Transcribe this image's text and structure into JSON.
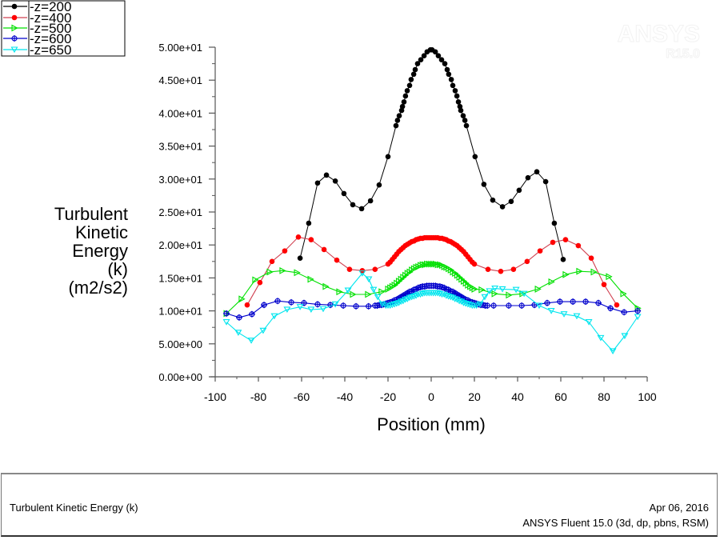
{
  "chart_data": {
    "type": "line",
    "title": "",
    "xlabel": "Position (mm)",
    "ylabel_lines": [
      "Turbulent",
      "Kinetic",
      "Energy",
      "(k)",
      "(m2/s2)"
    ],
    "ylabel": "Turbulent Kinetic Energy (k) (m2/s2)",
    "xlim": [
      -100,
      100
    ],
    "ylim": [
      0,
      50
    ],
    "x_ticks": [
      -100,
      -80,
      -60,
      -40,
      -20,
      0,
      20,
      40,
      60,
      80,
      100
    ],
    "x_tick_labels": [
      "-100",
      "-80",
      "-60",
      "-40",
      "-20",
      "0",
      "20",
      "40",
      "60",
      "80",
      "100"
    ],
    "y_ticks": [
      0,
      5,
      10,
      15,
      20,
      25,
      30,
      35,
      40,
      45,
      50
    ],
    "y_tick_labels": [
      "0.00e+00",
      "5.00e+00",
      "1.00e+01",
      "1.50e+01",
      "2.00e+01",
      "2.50e+01",
      "3.00e+01",
      "3.50e+01",
      "4.00e+01",
      "4.50e+01",
      "5.00e+01"
    ],
    "grid": false,
    "legend_position": "top-left",
    "series": [
      {
        "name": "-z=200",
        "color": "#000000",
        "marker": "circle",
        "x": [
          -60.7,
          -56.7,
          -52.6,
          -48.5,
          -44.4,
          -40.4,
          -36.3,
          -32.2,
          -28.1,
          -24.1,
          -20.0,
          -16.3,
          -15.6,
          -14.8,
          -13.7,
          -13.3,
          -12.6,
          -11.9,
          -11.1,
          -10.0,
          -9.3,
          -8.1,
          -7.4,
          -6.3,
          -4.8,
          -3.3,
          -1.9,
          -0.4,
          0.4,
          1.9,
          3.3,
          4.8,
          6.3,
          7.4,
          8.1,
          9.3,
          10.0,
          11.1,
          11.9,
          12.6,
          13.3,
          13.7,
          14.8,
          15.6,
          16.3,
          20.3,
          24.4,
          28.5,
          33.0,
          37.0,
          40.7,
          44.8,
          48.9,
          53.0,
          57.0,
          61.1
        ],
        "y": [
          18.0,
          23.3,
          29.4,
          30.6,
          29.7,
          27.8,
          26.1,
          25.5,
          26.7,
          29.1,
          33.4,
          38.1,
          38.9,
          39.6,
          40.4,
          41.0,
          41.7,
          42.6,
          43.4,
          44.2,
          45.1,
          45.9,
          46.6,
          47.5,
          48.1,
          48.7,
          49.3,
          49.6,
          49.6,
          49.3,
          48.7,
          48.1,
          47.5,
          46.6,
          45.9,
          45.1,
          44.2,
          43.4,
          42.6,
          41.7,
          41.0,
          40.4,
          39.6,
          38.9,
          38.1,
          33.4,
          29.2,
          26.8,
          25.8,
          26.6,
          28.3,
          30.2,
          31.1,
          29.6,
          23.3,
          17.8
        ]
      },
      {
        "name": "-z=400",
        "color": "#ff0000",
        "marker": "circle",
        "x": [
          -85.2,
          -79.3,
          -73.7,
          -67.8,
          -61.5,
          -55.6,
          -49.6,
          -43.7,
          -37.8,
          -31.9,
          -26.0,
          -20.0,
          -19.0,
          -18.0,
          -17.0,
          -16.0,
          -15.0,
          -14.0,
          -13.0,
          -12.0,
          -11.0,
          -10.0,
          -9.0,
          -8.0,
          -7.0,
          -6.0,
          -5.0,
          -4.0,
          -3.0,
          -2.0,
          -1.0,
          0.0,
          1.0,
          2.0,
          3.0,
          4.0,
          5.0,
          6.0,
          7.0,
          8.0,
          9.0,
          10.0,
          11.0,
          12.0,
          13.0,
          14.0,
          15.0,
          16.0,
          17.0,
          18.0,
          19.0,
          20.0,
          26.3,
          32.2,
          38.1,
          44.4,
          50.4,
          56.3,
          62.2,
          68.1,
          74.1,
          80.0,
          85.9
        ],
        "y": [
          10.9,
          14.3,
          17.5,
          19.1,
          21.2,
          20.8,
          19.3,
          17.7,
          16.3,
          16.1,
          16.3,
          17.1,
          17.4,
          17.8,
          18.2,
          18.6,
          19.0,
          19.3,
          19.6,
          19.9,
          20.1,
          20.3,
          20.5,
          20.6,
          20.8,
          20.9,
          21.0,
          21.0,
          21.1,
          21.1,
          21.1,
          21.1,
          21.1,
          21.1,
          21.1,
          21.0,
          21.0,
          20.9,
          20.8,
          20.6,
          20.5,
          20.3,
          20.1,
          19.9,
          19.6,
          19.3,
          19.0,
          18.6,
          18.2,
          17.8,
          17.4,
          17.1,
          16.3,
          16.0,
          16.3,
          17.5,
          19.1,
          20.4,
          20.8,
          19.9,
          18.0,
          14.0,
          10.9
        ]
      },
      {
        "name": "-z=500",
        "color": "#00e000",
        "marker": "triangle-right",
        "x": [
          -94.8,
          -87.8,
          -81.5,
          -74.8,
          -68.9,
          -62.2,
          -55.9,
          -48.9,
          -42.6,
          -36.3,
          -29.3,
          -23.0,
          -20.0,
          -19.0,
          -18.0,
          -17.0,
          -16.0,
          -15.0,
          -14.0,
          -13.0,
          -12.0,
          -11.0,
          -10.0,
          -9.0,
          -8.0,
          -7.0,
          -6.0,
          -5.0,
          -4.0,
          -3.0,
          -2.0,
          -1.0,
          0.0,
          1.0,
          2.0,
          3.0,
          4.0,
          5.0,
          6.0,
          7.0,
          8.0,
          9.0,
          10.0,
          11.0,
          12.0,
          13.0,
          14.0,
          15.0,
          16.0,
          17.0,
          18.0,
          19.0,
          20.0,
          23.3,
          29.3,
          35.9,
          42.2,
          49.3,
          55.6,
          62.2,
          68.5,
          75.2,
          82.2,
          88.9,
          95.6
        ],
        "y": [
          9.6,
          11.8,
          14.7,
          15.9,
          16.1,
          15.8,
          14.8,
          13.7,
          12.9,
          12.5,
          12.5,
          12.9,
          13.3,
          13.5,
          13.7,
          13.9,
          14.2,
          14.5,
          14.8,
          15.1,
          15.4,
          15.7,
          15.9,
          16.2,
          16.4,
          16.6,
          16.7,
          16.9,
          17.0,
          17.0,
          17.1,
          17.1,
          17.1,
          17.1,
          17.1,
          17.0,
          17.0,
          16.9,
          16.7,
          16.6,
          16.4,
          16.2,
          15.9,
          15.7,
          15.4,
          15.1,
          14.8,
          14.5,
          14.2,
          13.9,
          13.7,
          13.5,
          13.3,
          13.2,
          12.6,
          12.4,
          12.6,
          13.3,
          14.4,
          15.5,
          16.0,
          15.9,
          15.2,
          12.6,
          10.4
        ]
      },
      {
        "name": "-z=600",
        "color": "#0000cc",
        "marker": "diamond-cross",
        "x": [
          -94.8,
          -88.9,
          -83.0,
          -77.4,
          -71.1,
          -64.8,
          -58.9,
          -52.6,
          -46.7,
          -40.7,
          -34.8,
          -29.0,
          -26.0,
          -25.0,
          -24.0,
          -23.0,
          -22.0,
          -21.0,
          -20.0,
          -19.0,
          -18.0,
          -17.0,
          -16.0,
          -15.0,
          -14.0,
          -13.0,
          -12.0,
          -11.0,
          -10.0,
          -9.0,
          -8.0,
          -7.0,
          -6.0,
          -5.0,
          -4.0,
          -3.0,
          -2.0,
          -1.0,
          0.0,
          1.0,
          2.0,
          3.0,
          4.0,
          5.0,
          6.0,
          7.0,
          8.0,
          9.0,
          10.0,
          11.0,
          12.0,
          13.0,
          14.0,
          15.0,
          16.0,
          17.0,
          18.0,
          19.0,
          20.0,
          21.0,
          22.0,
          23.0,
          24.0,
          25.0,
          26.0,
          28.9,
          35.9,
          41.9,
          47.8,
          53.7,
          59.6,
          65.6,
          71.5,
          77.4,
          83.0,
          89.3,
          95.6
        ],
        "y": [
          9.6,
          9.0,
          9.5,
          10.9,
          11.5,
          11.3,
          11.2,
          11.0,
          10.9,
          10.8,
          10.7,
          10.7,
          10.8,
          10.8,
          10.9,
          10.9,
          11.0,
          11.1,
          11.2,
          11.3,
          11.4,
          11.6,
          11.7,
          11.9,
          12.1,
          12.3,
          12.5,
          12.7,
          12.9,
          13.0,
          13.2,
          13.3,
          13.5,
          13.6,
          13.7,
          13.7,
          13.8,
          13.8,
          13.8,
          13.8,
          13.8,
          13.7,
          13.7,
          13.6,
          13.5,
          13.3,
          13.2,
          13.0,
          12.9,
          12.7,
          12.5,
          12.3,
          12.1,
          11.9,
          11.7,
          11.6,
          11.4,
          11.3,
          11.2,
          11.1,
          11.0,
          10.9,
          10.9,
          10.8,
          10.8,
          10.8,
          10.8,
          10.8,
          10.9,
          11.2,
          11.4,
          11.4,
          11.4,
          11.2,
          10.4,
          9.8,
          10.0
        ]
      },
      {
        "name": "-z=650",
        "color": "#00e5ee",
        "marker": "triangle-down",
        "x": [
          -94.8,
          -89.3,
          -83.3,
          -77.8,
          -72.6,
          -66.7,
          -60.7,
          -55.6,
          -50.0,
          -44.4,
          -38.5,
          -31.9,
          -28.9,
          -26.7,
          -24.8,
          -22.6,
          -21.0,
          -20.0,
          -19.0,
          -18.0,
          -17.0,
          -16.0,
          -15.0,
          -14.0,
          -13.0,
          -12.0,
          -11.0,
          -10.0,
          -9.0,
          -8.0,
          -7.0,
          -6.0,
          -5.0,
          -4.0,
          -3.0,
          -2.0,
          -1.0,
          0.0,
          1.0,
          2.0,
          3.0,
          4.0,
          5.0,
          6.0,
          7.0,
          8.0,
          9.0,
          10.0,
          11.0,
          12.0,
          13.0,
          14.0,
          15.0,
          16.0,
          17.0,
          18.0,
          19.0,
          20.0,
          21.0,
          22.6,
          24.8,
          27.0,
          29.5,
          33.0,
          39.3,
          43.0,
          50.0,
          55.6,
          61.5,
          67.4,
          73.0,
          78.5,
          84.1,
          89.6,
          95.6
        ],
        "y": [
          8.3,
          6.7,
          5.5,
          7.0,
          9.2,
          10.2,
          10.6,
          10.2,
          10.3,
          11.0,
          13.1,
          15.7,
          14.8,
          13.2,
          12.1,
          11.0,
          10.8,
          10.8,
          10.8,
          10.9,
          11.0,
          11.1,
          11.2,
          11.4,
          11.5,
          11.7,
          11.8,
          12.0,
          12.1,
          12.2,
          12.3,
          12.5,
          12.5,
          12.6,
          12.7,
          12.7,
          12.7,
          12.7,
          12.7,
          12.7,
          12.7,
          12.6,
          12.5,
          12.5,
          12.3,
          12.2,
          12.1,
          12.0,
          11.8,
          11.7,
          11.5,
          11.4,
          11.2,
          11.1,
          11.0,
          10.9,
          10.8,
          10.8,
          10.8,
          11.0,
          12.1,
          13.0,
          13.4,
          13.3,
          13.2,
          12.6,
          10.8,
          10.0,
          9.5,
          9.2,
          8.3,
          5.9,
          3.9,
          6.2,
          9.1
        ]
      }
    ]
  },
  "watermark": {
    "brand": "ANSYS",
    "version": "R15.0"
  },
  "footer": {
    "title": "Turbulent Kinetic Energy (k)",
    "date": "Apr 06, 2016",
    "software": "ANSYS Fluent 15.0 (3d, dp, pbns, RSM)"
  }
}
